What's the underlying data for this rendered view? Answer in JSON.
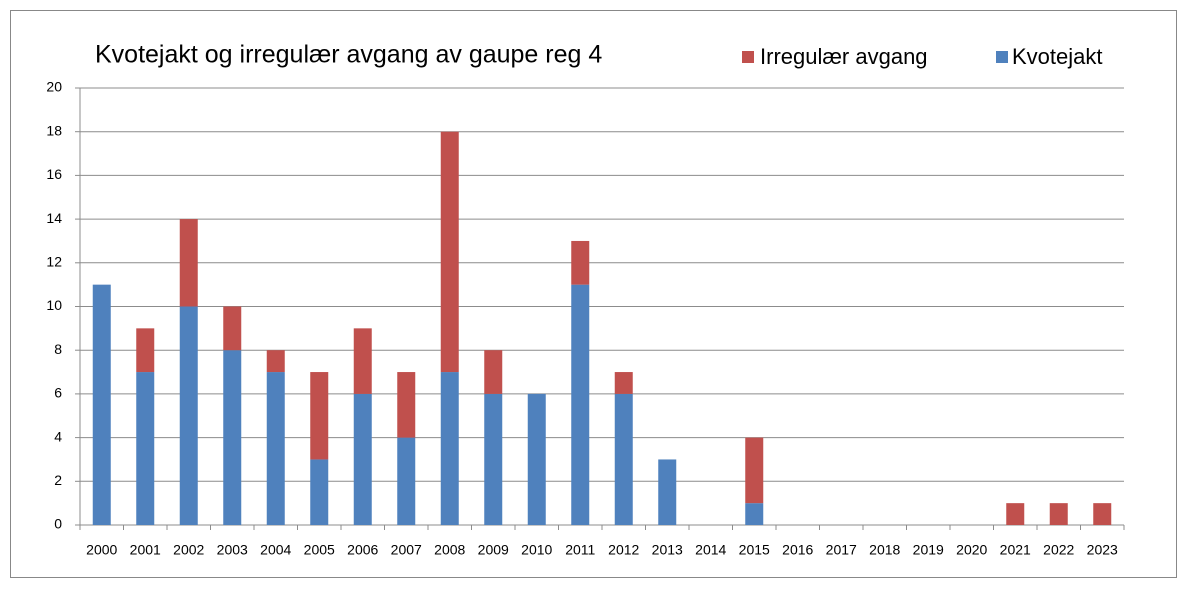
{
  "chart_data": {
    "type": "stacked_bar",
    "title": "Kvotejakt og  irregulær avgang av  gaupe reg 4",
    "categories": [
      "2000",
      "2001",
      "2002",
      "2003",
      "2004",
      "2005",
      "2006",
      "2007",
      "2008",
      "2009",
      "2010",
      "2011",
      "2012",
      "2013",
      "2014",
      "2015",
      "2016",
      "2017",
      "2018",
      "2019",
      "2020",
      "2021",
      "2022",
      "2023"
    ],
    "series": [
      {
        "name": "Kvotejakt",
        "color": "#4f81bd",
        "values": [
          11,
          7,
          10,
          8,
          7,
          3,
          6,
          4,
          7,
          6,
          6,
          11,
          6,
          3,
          0,
          1,
          0,
          0,
          0,
          0,
          0,
          0,
          0,
          0
        ]
      },
      {
        "name": "Irregulær avgang",
        "color": "#c0504d",
        "values": [
          0,
          2,
          4,
          2,
          1,
          4,
          3,
          3,
          11,
          2,
          0,
          2,
          1,
          0,
          0,
          3,
          0,
          0,
          0,
          0,
          0,
          1,
          1,
          1
        ]
      }
    ],
    "ylim": [
      0,
      20
    ],
    "yticks": [
      0,
      2,
      4,
      6,
      8,
      10,
      12,
      14,
      16,
      18,
      20
    ],
    "grid": true,
    "legend": "top-right"
  }
}
